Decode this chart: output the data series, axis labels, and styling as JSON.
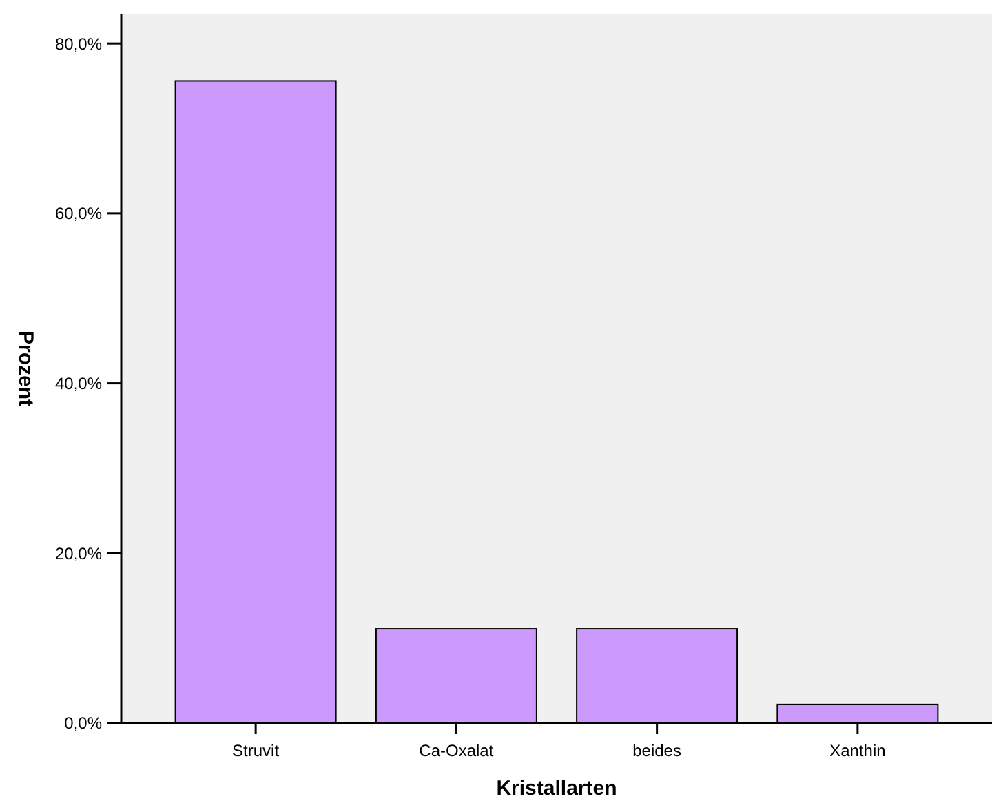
{
  "chart_data": {
    "type": "bar",
    "xlabel": "Kristallarten",
    "ylabel": "Prozent",
    "categories": [
      "Struvit",
      "Ca-Oxalat",
      "beides",
      "Xanthin"
    ],
    "values": [
      75.6,
      11.1,
      11.1,
      2.2
    ],
    "color": "#cc99ff",
    "ylim": [
      0,
      83.5
    ],
    "yticks": [
      {
        "value": 0,
        "label": "0,0%"
      },
      {
        "value": 20,
        "label": "20,0%"
      },
      {
        "value": 40,
        "label": "40,0%"
      },
      {
        "value": 60,
        "label": "60,0%"
      },
      {
        "value": 80,
        "label": "80,0%"
      }
    ],
    "grid": false
  }
}
